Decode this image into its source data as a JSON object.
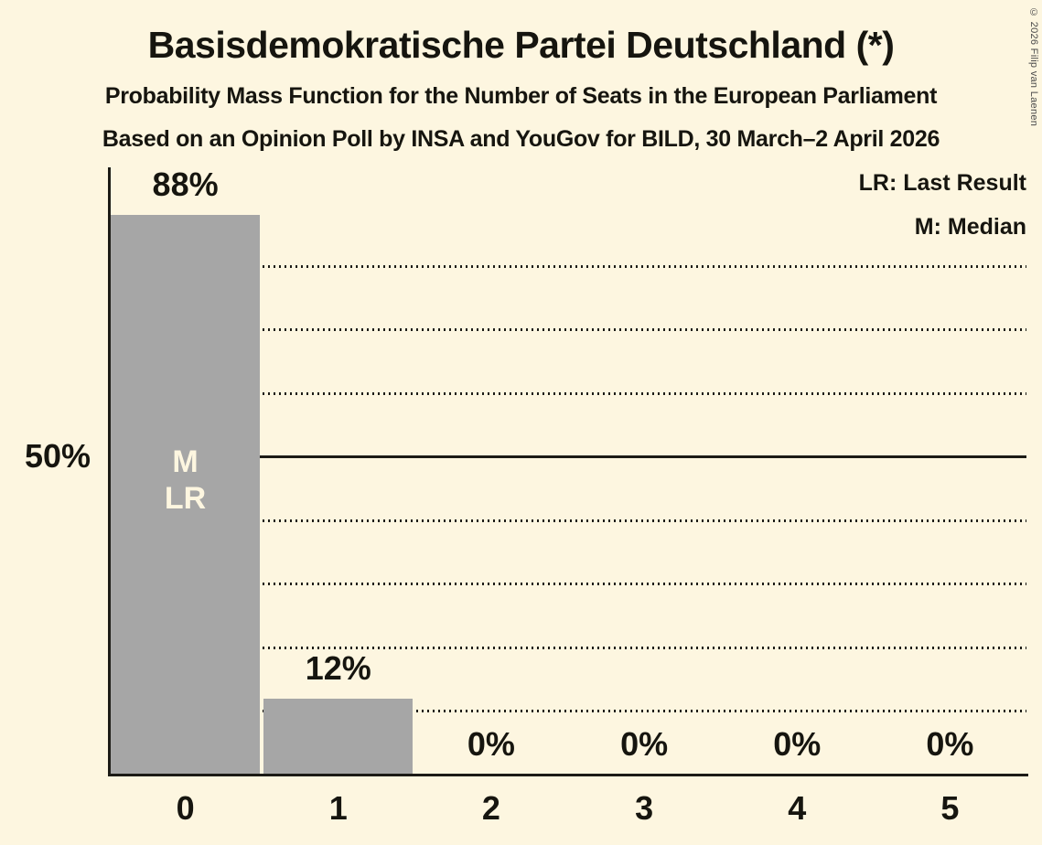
{
  "copyright": "© 2026 Filip van Laenen",
  "chart_data": {
    "type": "bar",
    "title": "Basisdemokratische Partei Deutschland (*)",
    "subtitle": "Probability Mass Function for the Number of Seats in the European Parliament",
    "source_line": "Based on an Opinion Poll by INSA and YouGov for BILD, 30 March–2 April 2026",
    "categories": [
      "0",
      "1",
      "2",
      "3",
      "4",
      "5"
    ],
    "values": [
      88,
      12,
      0,
      0,
      0,
      0
    ],
    "value_labels": [
      "88%",
      "12%",
      "0%",
      "0%",
      "0%",
      "0%"
    ],
    "xlabel": "",
    "ylabel": "",
    "ylim": [
      0,
      96
    ],
    "y_axis": {
      "tick_label": "50%",
      "tick_value": 50,
      "gridlines_percent": [
        10,
        20,
        30,
        40,
        50,
        60,
        70,
        80
      ],
      "solid_line_percent": 50,
      "gridline_style": "dotted"
    },
    "legend": {
      "position": "top-right",
      "items": [
        {
          "abbr": "LR",
          "label": "LR: Last Result"
        },
        {
          "abbr": "M",
          "label": "M: Median"
        }
      ]
    },
    "annotations": [
      {
        "category": "0",
        "lines": [
          "M",
          "LR"
        ]
      }
    ],
    "colors": {
      "background": "#FDF6E0",
      "bar": "#A6A6A6",
      "text": "#16150F",
      "grid": "#1C1B16",
      "bar_annotation_text": "#FDF6E0",
      "copyright_text": "#4A4A4A"
    }
  }
}
